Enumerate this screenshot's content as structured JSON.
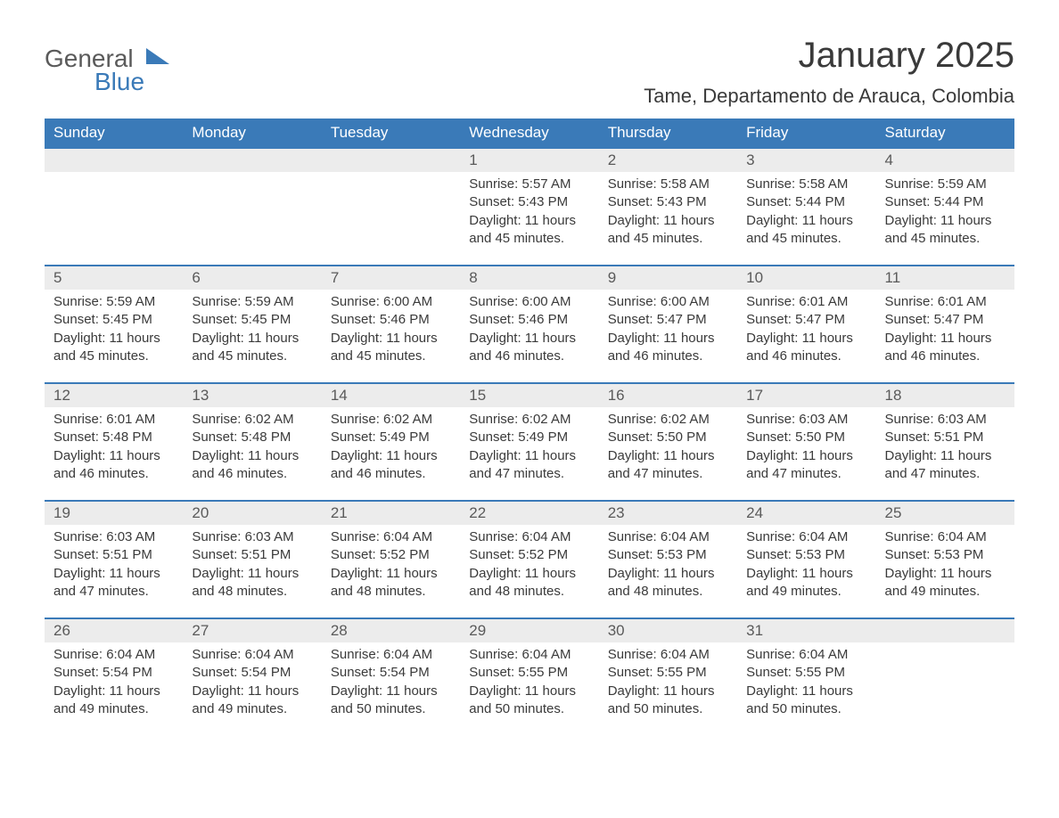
{
  "logo": {
    "word1": "General",
    "word2": "Blue"
  },
  "title": "January 2025",
  "location": "Tame, Departamento de Arauca, Colombia",
  "styling": {
    "header_bg": "#3a7ab8",
    "header_fg": "#ffffff",
    "daynum_bg": "#ececec",
    "daynum_fg": "#5a5a5a",
    "body_fg": "#3a3a3a",
    "row_border": "#3a7ab8",
    "page_bg": "#ffffff",
    "title_fontsize": 40,
    "location_fontsize": 22,
    "header_fontsize": 17,
    "daynum_fontsize": 17,
    "cell_fontsize": 15
  },
  "columns": [
    "Sunday",
    "Monday",
    "Tuesday",
    "Wednesday",
    "Thursday",
    "Friday",
    "Saturday"
  ],
  "weeks": [
    [
      null,
      null,
      null,
      {
        "n": "1",
        "sunrise": "5:57 AM",
        "sunset": "5:43 PM",
        "dl_h": "11",
        "dl_m": "45"
      },
      {
        "n": "2",
        "sunrise": "5:58 AM",
        "sunset": "5:43 PM",
        "dl_h": "11",
        "dl_m": "45"
      },
      {
        "n": "3",
        "sunrise": "5:58 AM",
        "sunset": "5:44 PM",
        "dl_h": "11",
        "dl_m": "45"
      },
      {
        "n": "4",
        "sunrise": "5:59 AM",
        "sunset": "5:44 PM",
        "dl_h": "11",
        "dl_m": "45"
      }
    ],
    [
      {
        "n": "5",
        "sunrise": "5:59 AM",
        "sunset": "5:45 PM",
        "dl_h": "11",
        "dl_m": "45"
      },
      {
        "n": "6",
        "sunrise": "5:59 AM",
        "sunset": "5:45 PM",
        "dl_h": "11",
        "dl_m": "45"
      },
      {
        "n": "7",
        "sunrise": "6:00 AM",
        "sunset": "5:46 PM",
        "dl_h": "11",
        "dl_m": "45"
      },
      {
        "n": "8",
        "sunrise": "6:00 AM",
        "sunset": "5:46 PM",
        "dl_h": "11",
        "dl_m": "46"
      },
      {
        "n": "9",
        "sunrise": "6:00 AM",
        "sunset": "5:47 PM",
        "dl_h": "11",
        "dl_m": "46"
      },
      {
        "n": "10",
        "sunrise": "6:01 AM",
        "sunset": "5:47 PM",
        "dl_h": "11",
        "dl_m": "46"
      },
      {
        "n": "11",
        "sunrise": "6:01 AM",
        "sunset": "5:47 PM",
        "dl_h": "11",
        "dl_m": "46"
      }
    ],
    [
      {
        "n": "12",
        "sunrise": "6:01 AM",
        "sunset": "5:48 PM",
        "dl_h": "11",
        "dl_m": "46"
      },
      {
        "n": "13",
        "sunrise": "6:02 AM",
        "sunset": "5:48 PM",
        "dl_h": "11",
        "dl_m": "46"
      },
      {
        "n": "14",
        "sunrise": "6:02 AM",
        "sunset": "5:49 PM",
        "dl_h": "11",
        "dl_m": "46"
      },
      {
        "n": "15",
        "sunrise": "6:02 AM",
        "sunset": "5:49 PM",
        "dl_h": "11",
        "dl_m": "47"
      },
      {
        "n": "16",
        "sunrise": "6:02 AM",
        "sunset": "5:50 PM",
        "dl_h": "11",
        "dl_m": "47"
      },
      {
        "n": "17",
        "sunrise": "6:03 AM",
        "sunset": "5:50 PM",
        "dl_h": "11",
        "dl_m": "47"
      },
      {
        "n": "18",
        "sunrise": "6:03 AM",
        "sunset": "5:51 PM",
        "dl_h": "11",
        "dl_m": "47"
      }
    ],
    [
      {
        "n": "19",
        "sunrise": "6:03 AM",
        "sunset": "5:51 PM",
        "dl_h": "11",
        "dl_m": "47"
      },
      {
        "n": "20",
        "sunrise": "6:03 AM",
        "sunset": "5:51 PM",
        "dl_h": "11",
        "dl_m": "48"
      },
      {
        "n": "21",
        "sunrise": "6:04 AM",
        "sunset": "5:52 PM",
        "dl_h": "11",
        "dl_m": "48"
      },
      {
        "n": "22",
        "sunrise": "6:04 AM",
        "sunset": "5:52 PM",
        "dl_h": "11",
        "dl_m": "48"
      },
      {
        "n": "23",
        "sunrise": "6:04 AM",
        "sunset": "5:53 PM",
        "dl_h": "11",
        "dl_m": "48"
      },
      {
        "n": "24",
        "sunrise": "6:04 AM",
        "sunset": "5:53 PM",
        "dl_h": "11",
        "dl_m": "49"
      },
      {
        "n": "25",
        "sunrise": "6:04 AM",
        "sunset": "5:53 PM",
        "dl_h": "11",
        "dl_m": "49"
      }
    ],
    [
      {
        "n": "26",
        "sunrise": "6:04 AM",
        "sunset": "5:54 PM",
        "dl_h": "11",
        "dl_m": "49"
      },
      {
        "n": "27",
        "sunrise": "6:04 AM",
        "sunset": "5:54 PM",
        "dl_h": "11",
        "dl_m": "49"
      },
      {
        "n": "28",
        "sunrise": "6:04 AM",
        "sunset": "5:54 PM",
        "dl_h": "11",
        "dl_m": "50"
      },
      {
        "n": "29",
        "sunrise": "6:04 AM",
        "sunset": "5:55 PM",
        "dl_h": "11",
        "dl_m": "50"
      },
      {
        "n": "30",
        "sunrise": "6:04 AM",
        "sunset": "5:55 PM",
        "dl_h": "11",
        "dl_m": "50"
      },
      {
        "n": "31",
        "sunrise": "6:04 AM",
        "sunset": "5:55 PM",
        "dl_h": "11",
        "dl_m": "50"
      },
      null
    ]
  ],
  "labels": {
    "sunrise": "Sunrise: ",
    "sunset": "Sunset: ",
    "daylight_pre": "Daylight: ",
    "daylight_mid": " hours and ",
    "daylight_post": " minutes."
  }
}
